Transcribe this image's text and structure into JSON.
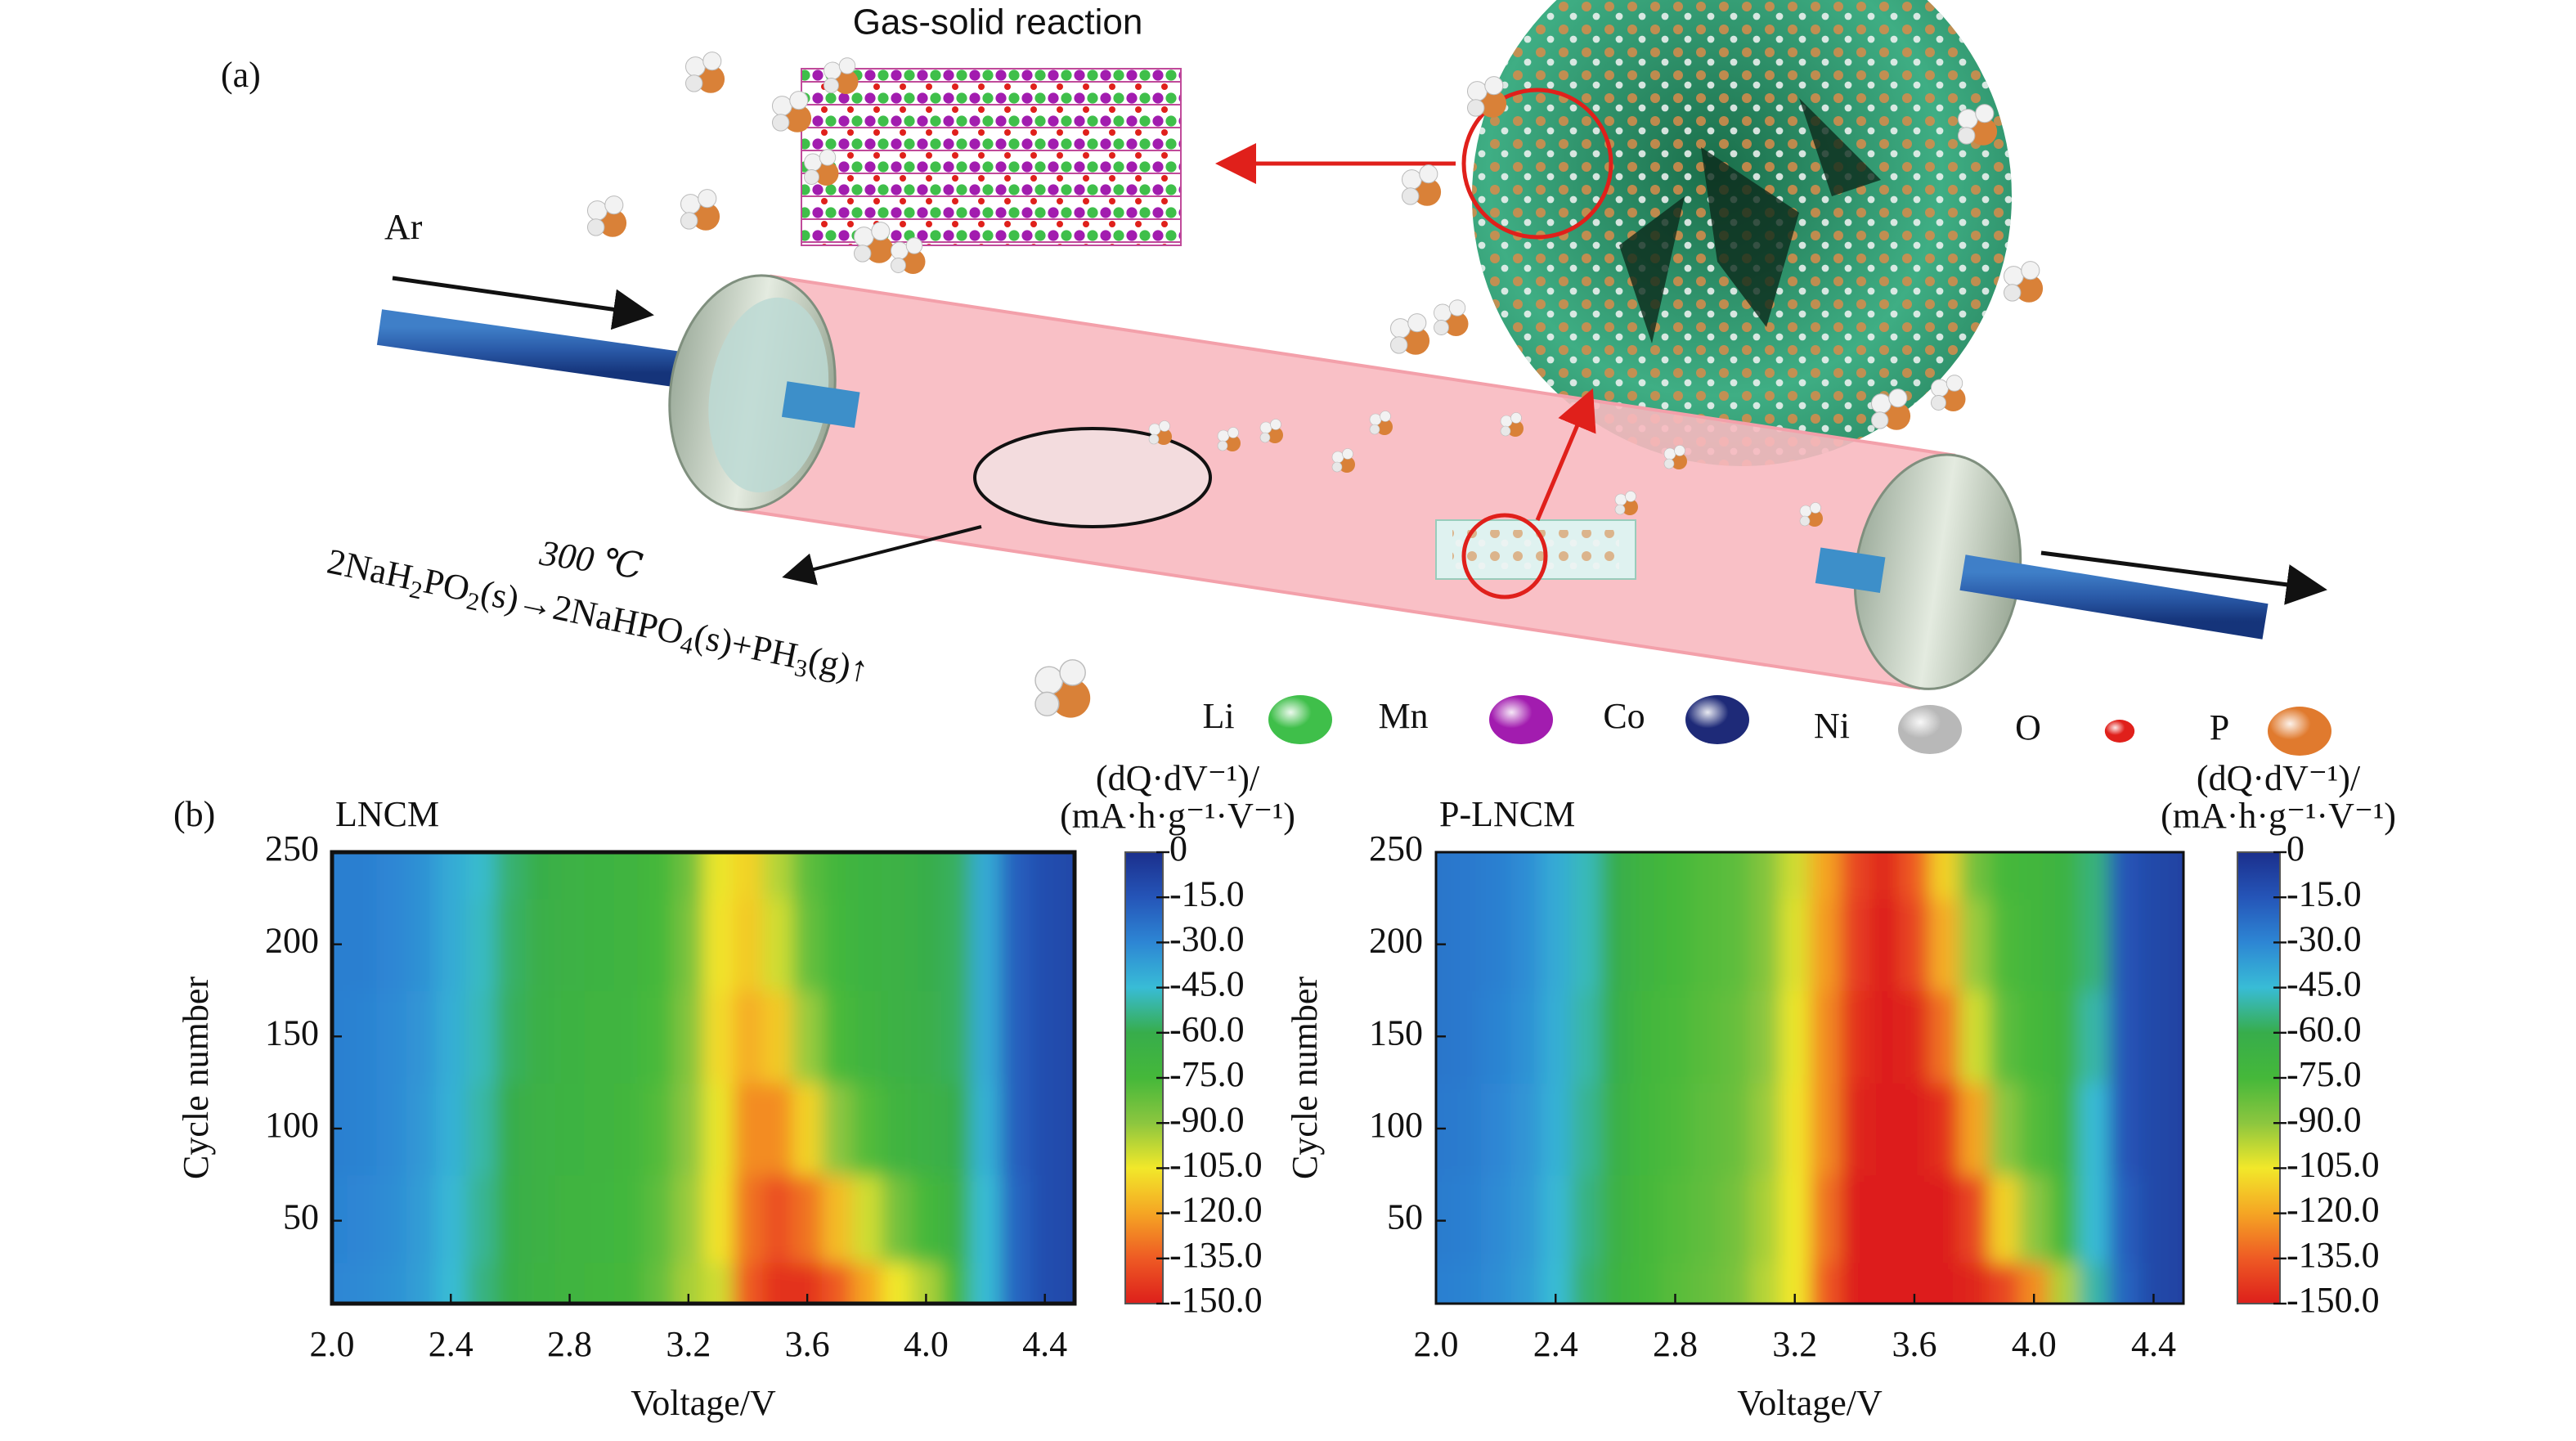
{
  "diagram": {
    "label": "(a)",
    "title": "Gas-solid reaction",
    "gas": "Ar",
    "temperature": "300 ℃",
    "reaction": [
      "2NaH",
      "2",
      "PO",
      "2",
      "(s)→2NaHPO",
      "4",
      "(s)+PH",
      "3",
      "(g)↑"
    ],
    "legend": [
      {
        "name": "Li",
        "color": "#3fbf4a"
      },
      {
        "name": "Mn",
        "color": "#a21caf"
      },
      {
        "name": "Co",
        "color": "#1e2a78"
      },
      {
        "name": "Ni",
        "color": "#b8b8b8"
      },
      {
        "name": "O",
        "color": "#e0201b"
      },
      {
        "name": "P",
        "color": "#e07a2e"
      }
    ]
  },
  "panel_b_label": "(b)",
  "chart_data": [
    {
      "type": "contour",
      "title": "LNCM",
      "xlabel": "Voltage/V",
      "ylabel": "Cycle number",
      "colorbar_label": [
        "(dQ·dV⁻¹)/",
        "(mA·h·g⁻¹·V⁻¹)"
      ],
      "xlim": [
        2.0,
        4.5
      ],
      "ylim": [
        5,
        250
      ],
      "xticks": [
        {
          "value": 2.0,
          "label": "2.0"
        },
        2.4,
        2.8,
        3.2,
        3.6,
        {
          "value": 4.0,
          "label": "4.0"
        },
        4.4
      ],
      "yticks": [
        50,
        100,
        150,
        200,
        250
      ],
      "clim": [
        -150,
        0
      ],
      "cticks": [
        0,
        {
          "value": -15,
          "label": "-15.0"
        },
        {
          "value": -30,
          "label": "-30.0"
        },
        {
          "value": -45,
          "label": "-45.0"
        },
        {
          "value": -60,
          "label": "-60.0"
        },
        {
          "value": -75,
          "label": "-75.0"
        },
        {
          "value": -90,
          "label": "-90.0"
        },
        {
          "value": -105,
          "label": "-105.0"
        },
        {
          "value": -120,
          "label": "-120.0"
        },
        {
          "value": -135,
          "label": "-135.0"
        },
        {
          "value": -150,
          "label": "-150.0"
        }
      ],
      "colors": [
        "#1b2f8c",
        "#2555b8",
        "#2d86d4",
        "#38bcd6",
        "#37ad4b",
        "#45b83a",
        "#8cc63f",
        "#f2e82a",
        "#f5a524",
        "#ee5a24",
        "#dd1f1b"
      ],
      "x": [
        2.0,
        2.1,
        2.2,
        2.3,
        2.4,
        2.5,
        2.6,
        2.7,
        2.8,
        2.9,
        3.0,
        3.1,
        3.2,
        3.3,
        3.4,
        3.5,
        3.6,
        3.7,
        3.8,
        3.9,
        4.0,
        4.1,
        4.2,
        4.3,
        4.4,
        4.5
      ],
      "y": [
        5,
        50,
        100,
        150,
        200,
        250
      ],
      "z": [
        [
          -30,
          -31,
          -33,
          -37,
          -45,
          -54,
          -62,
          -67,
          -70,
          -72,
          -74,
          -82,
          -94,
          -100,
          -135,
          -145,
          -145,
          -135,
          -120,
          -105,
          -95,
          -75,
          -45,
          -20,
          -12,
          -10
        ],
        [
          -29,
          -30,
          -32,
          -36,
          -44,
          -52,
          -61,
          -66,
          -69,
          -71,
          -73,
          -80,
          -92,
          -106,
          -130,
          -138,
          -130,
          -115,
          -100,
          -85,
          -75,
          -65,
          -45,
          -20,
          -12,
          -10
        ],
        [
          -28,
          -29,
          -31,
          -35,
          -42,
          -50,
          -60,
          -65,
          -68,
          -70,
          -72,
          -78,
          -90,
          -104,
          -125,
          -125,
          -110,
          -90,
          -78,
          -70,
          -65,
          -60,
          -42,
          -18,
          -12,
          -10
        ],
        [
          -28,
          -29,
          -31,
          -34,
          -41,
          -48,
          -58,
          -64,
          -67,
          -69,
          -71,
          -76,
          -88,
          -108,
          -118,
          -112,
          -92,
          -76,
          -69,
          -66,
          -63,
          -58,
          -40,
          -18,
          -12,
          -10
        ],
        [
          -28,
          -28,
          -30,
          -33,
          -40,
          -47,
          -57,
          -63,
          -66,
          -68,
          -70,
          -75,
          -86,
          -106,
          -112,
          -100,
          -82,
          -73,
          -68,
          -65,
          -62,
          -58,
          -40,
          -18,
          -12,
          -10
        ],
        [
          -28,
          -28,
          -30,
          -33,
          -40,
          -46,
          -56,
          -62,
          -65,
          -68,
          -70,
          -74,
          -84,
          -104,
          -110,
          -96,
          -80,
          -72,
          -68,
          -65,
          -62,
          -58,
          -40,
          -18,
          -12,
          -10
        ]
      ]
    },
    {
      "type": "contour",
      "title": "P-LNCM",
      "xlabel": "Voltage/V",
      "ylabel": "Cycle number",
      "colorbar_label": [
        "(dQ·dV⁻¹)/",
        "(mA·h·g⁻¹·V⁻¹)"
      ],
      "xlim": [
        2.0,
        4.5
      ],
      "ylim": [
        5,
        250
      ],
      "xticks": [
        {
          "value": 2.0,
          "label": "2.0"
        },
        2.4,
        2.8,
        3.2,
        3.6,
        {
          "value": 4.0,
          "label": "4.0"
        },
        4.4
      ],
      "yticks": [
        50,
        100,
        150,
        200,
        250
      ],
      "clim": [
        -150,
        0
      ],
      "cticks": [
        0,
        {
          "value": -15,
          "label": "-15.0"
        },
        {
          "value": -30,
          "label": "-30.0"
        },
        {
          "value": -45,
          "label": "-45.0"
        },
        {
          "value": -60,
          "label": "-60.0"
        },
        {
          "value": -75,
          "label": "-75.0"
        },
        {
          "value": -90,
          "label": "-90.0"
        },
        {
          "value": -105,
          "label": "-105.0"
        },
        {
          "value": -120,
          "label": "-120.0"
        },
        {
          "value": -135,
          "label": "-135.0"
        },
        {
          "value": -150,
          "label": "-150.0"
        }
      ],
      "colors": [
        "#1b2f8c",
        "#2555b8",
        "#2d86d4",
        "#38bcd6",
        "#37ad4b",
        "#45b83a",
        "#8cc63f",
        "#f2e82a",
        "#f5a524",
        "#ee5a24",
        "#dd1f1b"
      ],
      "x": [
        2.0,
        2.1,
        2.2,
        2.3,
        2.4,
        2.5,
        2.6,
        2.7,
        2.8,
        2.9,
        3.0,
        3.1,
        3.2,
        3.3,
        3.4,
        3.5,
        3.6,
        3.7,
        3.8,
        3.9,
        4.0,
        4.1,
        4.2,
        4.3,
        4.4,
        4.5
      ],
      "y": [
        5,
        50,
        100,
        150,
        200,
        250
      ],
      "z": [
        [
          -28,
          -29,
          -32,
          -36,
          -45,
          -56,
          -68,
          -75,
          -79,
          -82,
          -86,
          -96,
          -105,
          -135,
          -150,
          -150,
          -150,
          -150,
          -148,
          -140,
          -125,
          -95,
          -50,
          -20,
          -10,
          -8
        ],
        [
          -27,
          -28,
          -31,
          -35,
          -44,
          -54,
          -66,
          -74,
          -78,
          -81,
          -85,
          -94,
          -105,
          -130,
          -150,
          -150,
          -150,
          -150,
          -140,
          -110,
          -90,
          -75,
          -45,
          -18,
          -10,
          -8
        ],
        [
          -26,
          -27,
          -30,
          -34,
          -42,
          -52,
          -64,
          -73,
          -77,
          -80,
          -83,
          -92,
          -106,
          -125,
          -148,
          -150,
          -150,
          -145,
          -120,
          -90,
          -78,
          -70,
          -45,
          -15,
          -10,
          -8
        ],
        [
          -25,
          -26,
          -29,
          -33,
          -41,
          -50,
          -62,
          -72,
          -76,
          -79,
          -82,
          -90,
          -104,
          -125,
          -145,
          -150,
          -148,
          -130,
          -100,
          -80,
          -75,
          -70,
          -50,
          -15,
          -10,
          -8
        ],
        [
          -25,
          -26,
          -28,
          -32,
          -40,
          -48,
          -60,
          -70,
          -75,
          -78,
          -80,
          -88,
          -102,
          -122,
          -142,
          -150,
          -140,
          -118,
          -92,
          -77,
          -72,
          -68,
          -55,
          -15,
          -10,
          -8
        ],
        [
          -25,
          -26,
          -28,
          -32,
          -40,
          -48,
          -60,
          -70,
          -75,
          -78,
          -80,
          -88,
          -100,
          -120,
          -140,
          -148,
          -135,
          -110,
          -85,
          -75,
          -72,
          -68,
          -55,
          -15,
          -10,
          -8
        ]
      ]
    }
  ]
}
